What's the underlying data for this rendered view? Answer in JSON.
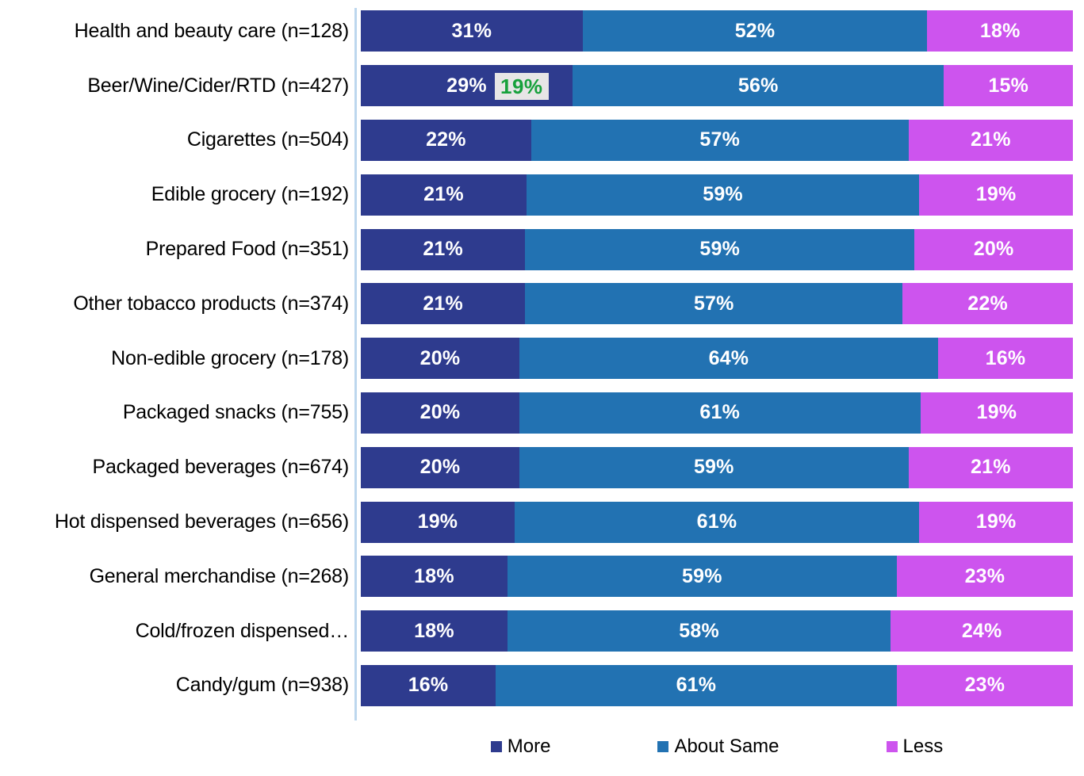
{
  "chart_data": {
    "type": "bar",
    "orientation": "horizontal",
    "stacked": true,
    "value_suffix": "%",
    "xlim": [
      0,
      100
    ],
    "grid": false,
    "legend_position": "bottom",
    "categories": [
      "Health and beauty care (n=128)",
      "Beer/Wine/Cider/RTD (n=427)",
      "Cigarettes (n=504)",
      "Edible grocery (n=192)",
      "Prepared Food (n=351)",
      "Other tobacco products (n=374)",
      "Non-edible grocery (n=178)",
      "Packaged snacks (n=755)",
      "Packaged beverages (n=674)",
      "Hot dispensed beverages (n=656)",
      "General merchandise (n=268)",
      "Cold/frozen dispensed…",
      "Candy/gum (n=938)"
    ],
    "series": [
      {
        "name": "More",
        "color": "#2E3B8E",
        "values": [
          31,
          29,
          22,
          21,
          21,
          21,
          20,
          20,
          20,
          19,
          18,
          18,
          16
        ]
      },
      {
        "name": "About Same",
        "color": "#2272B2",
        "values": [
          52,
          56,
          57,
          59,
          59,
          57,
          64,
          61,
          59,
          61,
          59,
          58,
          61
        ]
      },
      {
        "name": "Less",
        "color": "#CD54EE",
        "values": [
          18,
          15,
          21,
          19,
          20,
          22,
          16,
          19,
          21,
          19,
          23,
          24,
          23
        ]
      }
    ],
    "annotation": {
      "row_index": 1,
      "text": "19%",
      "text_color": "#17A13C",
      "background": "#E7E6E6"
    },
    "legend": [
      {
        "label": "More",
        "color": "#2E3B8E"
      },
      {
        "label": "About Same",
        "color": "#2272B2"
      },
      {
        "label": "Less",
        "color": "#CD54EE"
      }
    ],
    "axis_line_color": "#BDD7EE",
    "value_label_color": "#FFFFFF"
  }
}
